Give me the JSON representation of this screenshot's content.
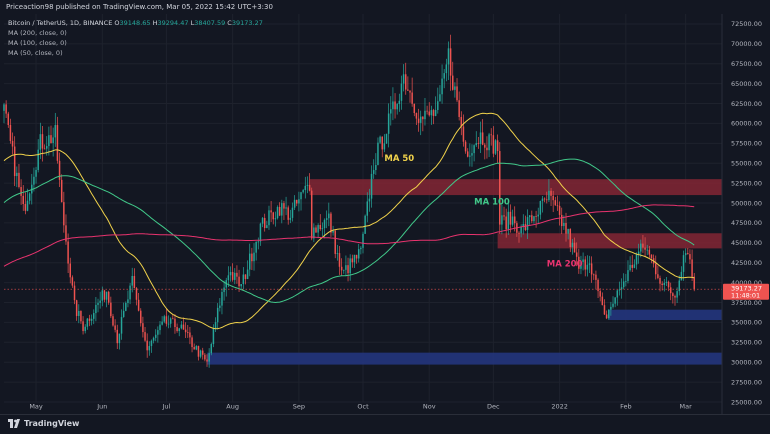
{
  "header": {
    "publisher": "Priceaction98 published on TradingView.com, Mar 05, 2022 15:42 UTC+3:30"
  },
  "legend": {
    "symbol": "Bitcoin / TetherUS, 1D, BINANCE",
    "ohlc": [
      {
        "k": "O",
        "v": "39148.65"
      },
      {
        "k": "H",
        "v": "39294.47"
      },
      {
        "k": "L",
        "v": "38407.59"
      },
      {
        "k": "C",
        "v": "39173.27"
      }
    ],
    "indicators": [
      "MA (200, close, 0)",
      "MA (100, close, 0)",
      "MA (50, close, 0)"
    ]
  },
  "footer": {
    "brand": "TradingView"
  },
  "colors": {
    "background": "#131722",
    "up": "#26a69a",
    "down": "#ef5350",
    "ma50": "#f0d24b",
    "ma100": "#41c98a",
    "ma200": "#e8336e",
    "resistance_zone": "#7d2533",
    "support_zone": "#23357d"
  },
  "chart_data": {
    "type": "candlestick",
    "xlim": [
      "2021-04-16",
      "2022-03-18"
    ],
    "ylim": [
      25000,
      73750
    ],
    "y_ticks": [
      "72500.00",
      "70000.00",
      "67500.00",
      "65000.00",
      "62500.00",
      "60000.00",
      "57500.00",
      "55000.00",
      "52500.00",
      "50000.00",
      "47500.00",
      "45000.00",
      "42500.00",
      "40000.00",
      "37500.00",
      "35000.00",
      "32500.00",
      "30000.00",
      "27500.00",
      "25000.00"
    ],
    "x_ticks": [
      {
        "label": "May",
        "date": "2021-05-01"
      },
      {
        "label": "Jun",
        "date": "2021-06-01"
      },
      {
        "label": "Jul",
        "date": "2021-07-01"
      },
      {
        "label": "Aug",
        "date": "2021-08-01"
      },
      {
        "label": "Sep",
        "date": "2021-09-01"
      },
      {
        "label": "Oct",
        "date": "2021-10-01"
      },
      {
        "label": "Nov",
        "date": "2021-11-01"
      },
      {
        "label": "Dec",
        "date": "2021-12-01"
      },
      {
        "label": "2022",
        "date": "2022-01-01"
      },
      {
        "label": "Feb",
        "date": "2022-02-01"
      },
      {
        "label": "Mar",
        "date": "2022-03-01"
      }
    ],
    "price_anchors": [
      [
        "2021-04-16",
        61500
      ],
      [
        "2021-04-25",
        49000
      ],
      [
        "2021-05-03",
        57500
      ],
      [
        "2021-05-10",
        58500
      ],
      [
        "2021-05-13",
        49500
      ],
      [
        "2021-05-19",
        37000
      ],
      [
        "2021-05-23",
        34500
      ],
      [
        "2021-06-03",
        39000
      ],
      [
        "2021-06-08",
        33000
      ],
      [
        "2021-06-15",
        40000
      ],
      [
        "2021-06-22",
        31500
      ],
      [
        "2021-06-30",
        35000
      ],
      [
        "2021-07-07",
        34500
      ],
      [
        "2021-07-20",
        29800
      ],
      [
        "2021-07-26",
        37500
      ],
      [
        "2021-07-30",
        41500
      ],
      [
        "2021-08-05",
        39500
      ],
      [
        "2021-08-14",
        47000
      ],
      [
        "2021-08-23",
        49500
      ],
      [
        "2021-08-28",
        48500
      ],
      [
        "2021-09-06",
        52500
      ],
      [
        "2021-09-07",
        46500
      ],
      [
        "2021-09-15",
        48000
      ],
      [
        "2021-09-21",
        41000
      ],
      [
        "2021-09-30",
        43800
      ],
      [
        "2021-10-06",
        55000
      ],
      [
        "2021-10-15",
        61500
      ],
      [
        "2021-10-20",
        66000
      ],
      [
        "2021-10-28",
        60500
      ],
      [
        "2021-11-05",
        61500
      ],
      [
        "2021-11-10",
        68500
      ],
      [
        "2021-11-18",
        56500
      ],
      [
        "2021-11-25",
        58500
      ],
      [
        "2021-12-03",
        57000
      ],
      [
        "2021-12-04",
        47500
      ],
      [
        "2021-12-10",
        48000
      ],
      [
        "2021-12-14",
        46500
      ],
      [
        "2021-12-27",
        50700
      ],
      [
        "2022-01-05",
        46000
      ],
      [
        "2022-01-10",
        41800
      ],
      [
        "2022-01-15",
        43000
      ],
      [
        "2022-01-22",
        35500
      ],
      [
        "2022-01-24",
        36500
      ],
      [
        "2022-02-07",
        43800
      ],
      [
        "2022-02-10",
        44500
      ],
      [
        "2022-02-18",
        40000
      ],
      [
        "2022-02-24",
        38300
      ],
      [
        "2022-02-28",
        43500
      ],
      [
        "2022-03-02",
        44400
      ],
      [
        "2022-03-05",
        39173
      ]
    ],
    "last_price": {
      "value": 39173.27,
      "label": "39173.27",
      "countdown": "11:48:01"
    },
    "zones": [
      {
        "x0": "2021-09-06",
        "x1": "2022-03-18",
        "y0": 51000,
        "y1": 53000,
        "kind": "resistance"
      },
      {
        "x0": "2021-12-03",
        "x1": "2022-03-18",
        "y0": 44300,
        "y1": 46200,
        "kind": "resistance"
      },
      {
        "x0": "2022-01-24",
        "x1": "2022-03-18",
        "y0": 35300,
        "y1": 36600,
        "kind": "support"
      },
      {
        "x0": "2021-07-20",
        "x1": "2022-03-18",
        "y0": 29700,
        "y1": 31200,
        "kind": "support"
      }
    ],
    "moving_averages": [
      {
        "name": "MA 50",
        "period": 50,
        "label_at": [
          "2021-10-11",
          55300
        ],
        "color": "#f0d24b"
      },
      {
        "name": "MA 100",
        "period": 100,
        "label_at": [
          "2021-11-22",
          49800
        ],
        "color": "#41c98a"
      },
      {
        "name": "MA 200",
        "period": 200,
        "label_at": [
          "2021-12-26",
          42000
        ],
        "color": "#e8336e"
      }
    ]
  }
}
